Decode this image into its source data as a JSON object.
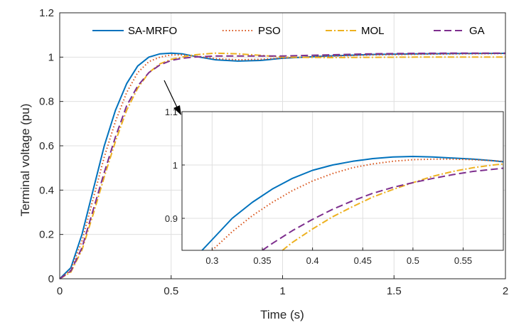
{
  "chart_data": [
    {
      "type": "line",
      "xlabel": "Time (s)",
      "ylabel": "Terminal voltage (pu)",
      "xlim": [
        0,
        2
      ],
      "ylim": [
        0,
        1.2
      ],
      "xticks": [
        0,
        0.5,
        1,
        1.5,
        2
      ],
      "xtick_labels": [
        "0",
        "0.5",
        "1",
        "1.5",
        "2"
      ],
      "yticks": [
        0,
        0.2,
        0.4,
        0.6,
        0.8,
        1,
        1.2
      ],
      "ytick_labels": [
        "0",
        "0.2",
        "0.4",
        "0.6",
        "0.8",
        "1",
        "1.2"
      ],
      "grid": true,
      "legend_position": "top",
      "series": [
        {
          "name": "SA-MRFO",
          "color": "#0072BD",
          "dash": "solid",
          "x": [
            0,
            0.05,
            0.1,
            0.15,
            0.2,
            0.25,
            0.3,
            0.35,
            0.4,
            0.45,
            0.5,
            0.55,
            0.6,
            0.7,
            0.8,
            0.9,
            1.0,
            1.2,
            1.4,
            1.6,
            1.8,
            2.0
          ],
          "y": [
            0,
            0.05,
            0.2,
            0.4,
            0.6,
            0.76,
            0.88,
            0.96,
            1.0,
            1.015,
            1.018,
            1.015,
            1.005,
            0.988,
            0.982,
            0.985,
            0.995,
            1.005,
            1.012,
            1.015,
            1.016,
            1.017
          ]
        },
        {
          "name": "PSO",
          "color": "#D95319",
          "dash": "dotted",
          "x": [
            0,
            0.05,
            0.1,
            0.15,
            0.2,
            0.25,
            0.3,
            0.35,
            0.4,
            0.45,
            0.5,
            0.55,
            0.6,
            0.7,
            0.8,
            0.9,
            1.0,
            1.2,
            1.4,
            1.6,
            1.8,
            2.0
          ],
          "y": [
            0,
            0.04,
            0.17,
            0.36,
            0.55,
            0.71,
            0.84,
            0.93,
            0.98,
            1.0,
            1.01,
            1.01,
            1.005,
            0.993,
            0.988,
            0.99,
            0.996,
            1.004,
            1.01,
            1.013,
            1.015,
            1.016
          ]
        },
        {
          "name": "MOL",
          "color": "#EDB120",
          "dash": "dashdot",
          "x": [
            0,
            0.05,
            0.1,
            0.15,
            0.2,
            0.25,
            0.3,
            0.35,
            0.4,
            0.45,
            0.5,
            0.55,
            0.6,
            0.7,
            0.8,
            0.9,
            1.0,
            1.2,
            1.4,
            1.6,
            1.8,
            2.0
          ],
          "y": [
            0,
            0.03,
            0.13,
            0.29,
            0.46,
            0.62,
            0.76,
            0.86,
            0.93,
            0.97,
            0.99,
            1.0,
            1.01,
            1.018,
            1.015,
            1.008,
            1.0,
            0.998,
            0.999,
            1.0,
            1.0,
            1.0
          ]
        },
        {
          "name": "GA",
          "color": "#7E2F8E",
          "dash": "dashed",
          "x": [
            0,
            0.05,
            0.1,
            0.15,
            0.2,
            0.25,
            0.3,
            0.35,
            0.4,
            0.45,
            0.5,
            0.55,
            0.6,
            0.7,
            0.8,
            0.9,
            1.0,
            1.2,
            1.4,
            1.6,
            1.8,
            2.0
          ],
          "y": [
            0,
            0.035,
            0.14,
            0.31,
            0.48,
            0.64,
            0.78,
            0.87,
            0.93,
            0.965,
            0.985,
            0.995,
            1.0,
            1.005,
            1.005,
            1.005,
            1.005,
            1.01,
            1.015,
            1.017,
            1.018,
            1.018
          ]
        }
      ]
    },
    {
      "type": "line",
      "role": "inset",
      "xlim": [
        0.27,
        0.59
      ],
      "ylim": [
        0.84,
        1.1
      ],
      "xticks": [
        0.3,
        0.35,
        0.4,
        0.45,
        0.5,
        0.55
      ],
      "xtick_labels": [
        "0.3",
        "0.35",
        "0.4",
        "0.45",
        "0.5",
        "0.55"
      ],
      "yticks": [
        0.9,
        1.0,
        1.1
      ],
      "ytick_labels": [
        "0.9",
        "1",
        "1.1"
      ],
      "grid": true,
      "series": [
        {
          "name": "SA-MRFO",
          "color": "#0072BD",
          "dash": "solid",
          "x": [
            0.29,
            0.3,
            0.32,
            0.34,
            0.36,
            0.38,
            0.4,
            0.42,
            0.44,
            0.46,
            0.48,
            0.5,
            0.52,
            0.54,
            0.56,
            0.58,
            0.59
          ],
          "y": [
            0.84,
            0.86,
            0.9,
            0.93,
            0.955,
            0.975,
            0.99,
            1.0,
            1.007,
            1.012,
            1.015,
            1.016,
            1.015,
            1.013,
            1.011,
            1.008,
            1.006
          ]
        },
        {
          "name": "PSO",
          "color": "#D95319",
          "dash": "dotted",
          "x": [
            0.3,
            0.32,
            0.34,
            0.36,
            0.38,
            0.4,
            0.42,
            0.44,
            0.46,
            0.48,
            0.5,
            0.52,
            0.54,
            0.56,
            0.58,
            0.59
          ],
          "y": [
            0.84,
            0.875,
            0.905,
            0.93,
            0.952,
            0.97,
            0.984,
            0.995,
            1.002,
            1.007,
            1.01,
            1.011,
            1.011,
            1.01,
            1.008,
            1.007
          ]
        },
        {
          "name": "MOL",
          "color": "#EDB120",
          "dash": "dashdot",
          "x": [
            0.37,
            0.38,
            0.4,
            0.42,
            0.44,
            0.46,
            0.48,
            0.5,
            0.52,
            0.54,
            0.56,
            0.58,
            0.59
          ],
          "y": [
            0.84,
            0.855,
            0.88,
            0.903,
            0.922,
            0.94,
            0.954,
            0.967,
            0.979,
            0.988,
            0.995,
            1.0,
            1.002
          ]
        },
        {
          "name": "GA",
          "color": "#7E2F8E",
          "dash": "dashed",
          "x": [
            0.35,
            0.36,
            0.38,
            0.4,
            0.42,
            0.44,
            0.46,
            0.48,
            0.5,
            0.52,
            0.54,
            0.56,
            0.58,
            0.59
          ],
          "y": [
            0.84,
            0.853,
            0.877,
            0.898,
            0.917,
            0.933,
            0.947,
            0.958,
            0.967,
            0.975,
            0.982,
            0.988,
            0.992,
            0.994
          ]
        }
      ]
    }
  ]
}
